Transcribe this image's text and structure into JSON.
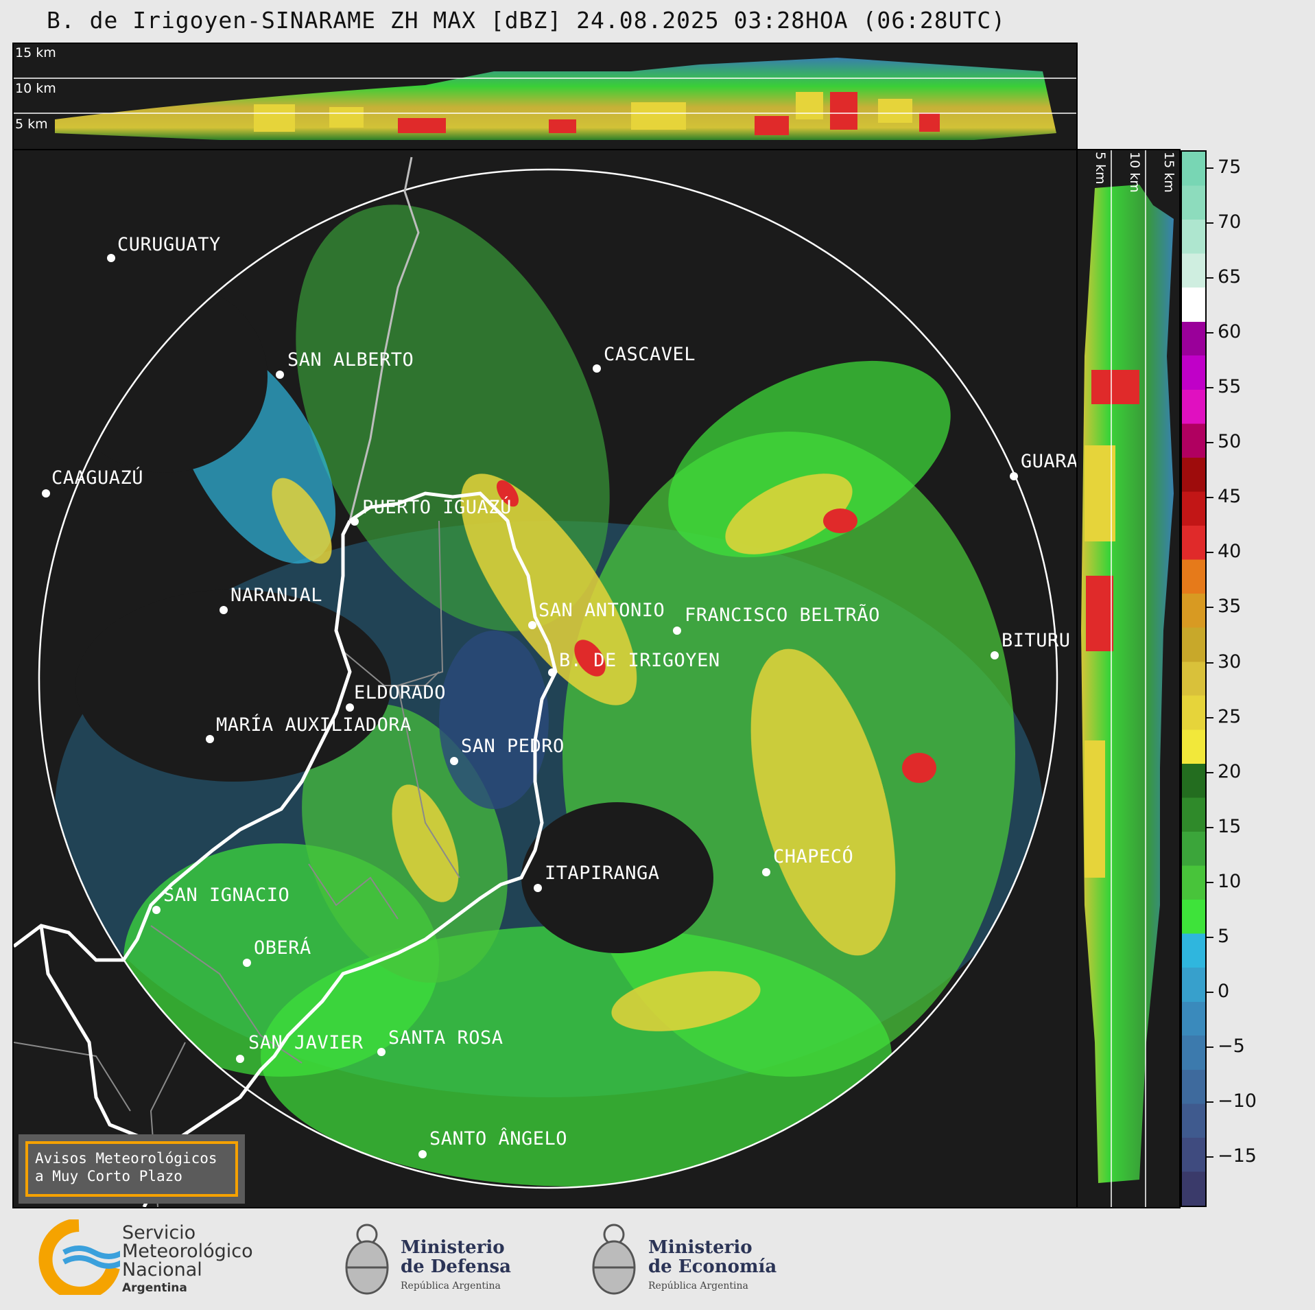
{
  "title": "B. de Irigoyen-SINARAME ZH MAX [dBZ] 24.08.2025 03:28HOA (06:28UTC)",
  "top_panel": {
    "alt_labels": [
      "15 km",
      "10 km",
      "5 km"
    ]
  },
  "right_panel": {
    "alt_labels": [
      "5 km",
      "10 km",
      "15 km"
    ]
  },
  "cities": [
    {
      "name": "CURUGUATY"
    },
    {
      "name": "SAN ALBERTO"
    },
    {
      "name": "CASCAVEL"
    },
    {
      "name": "CAAGUAZÚ"
    },
    {
      "name": "GUARA"
    },
    {
      "name": "PUERTO IGUAZÚ"
    },
    {
      "name": "NARANJAL"
    },
    {
      "name": "SAN ANTONIO"
    },
    {
      "name": "FRANCISCO BELTRÃO"
    },
    {
      "name": "BITURU"
    },
    {
      "name": "B. DE IRIGOYEN"
    },
    {
      "name": "ELDORADO"
    },
    {
      "name": "MARÍA AUXILIADORA"
    },
    {
      "name": "SAN PEDRO"
    },
    {
      "name": "CHAPECÓ"
    },
    {
      "name": "ITAPIRANGA"
    },
    {
      "name": "SAN IGNACIO"
    },
    {
      "name": "OBERÁ"
    },
    {
      "name": "SAN JAVIER"
    },
    {
      "name": "SANTA ROSA"
    },
    {
      "name": "SANTO ÂNGELO"
    }
  ],
  "colorbar": {
    "unit": "dBZ",
    "ticks": [
      "75",
      "70",
      "65",
      "60",
      "55",
      "50",
      "45",
      "40",
      "35",
      "30",
      "25",
      "20",
      "15",
      "10",
      "5",
      "0",
      "−5",
      "−10",
      "−15"
    ],
    "colors": [
      "#3a3a6a",
      "#3f4b7f",
      "#3f5a8e",
      "#3e6a9d",
      "#3c7aad",
      "#3a8abc",
      "#37a0cc",
      "#2fb6de",
      "#3ee33a",
      "#48c43a",
      "#3ba53a",
      "#2f8a2a",
      "#236d1f",
      "#f2e83a",
      "#e6d43a",
      "#d9c13a",
      "#c8a82a",
      "#d89a22",
      "#e67a1a",
      "#e02a2a",
      "#c21616",
      "#9e0c0c",
      "#b00060",
      "#e010c0",
      "#c000c8",
      "#9a009a",
      "#ffffff",
      "#cfeee0",
      "#aee6cf",
      "#8ddcbd",
      "#78d6b4"
    ]
  },
  "warning": {
    "line1": "Avisos Meteorológicos",
    "line2": "a Muy Corto Plazo"
  },
  "logos": {
    "smn": {
      "line1": "Servicio",
      "line2": "Meteorológico",
      "line3": "Nacional",
      "line4": "Argentina"
    },
    "defensa": {
      "line1": "Ministerio",
      "line2": "de Defensa",
      "line3": "República Argentina"
    },
    "economia": {
      "line1": "Ministerio",
      "line2": "de Economía",
      "line3": "República Argentina"
    }
  }
}
